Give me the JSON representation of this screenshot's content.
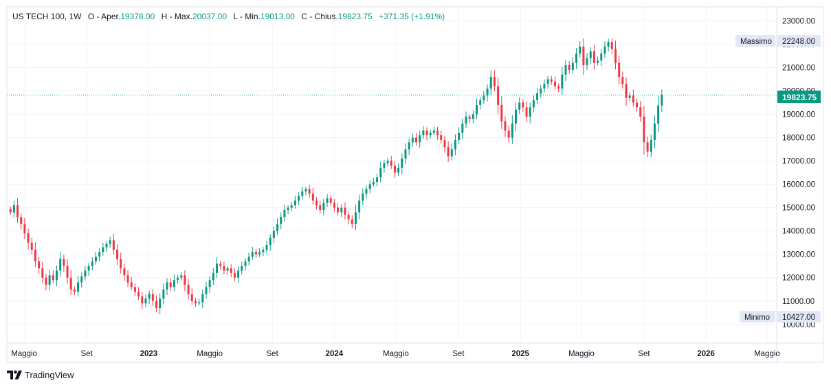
{
  "legend": {
    "symbol": "US TECH 100, 1W",
    "open_label": "O - Aper.",
    "open": "19378.00",
    "high_label": "H - Max.",
    "high": "20037.00",
    "low_label": "L - Min.",
    "low": "19013.00",
    "close_label": "C - Chius.",
    "close": "19823.75",
    "change": "+371.35 (+1.91%)"
  },
  "colors": {
    "up": "#089981",
    "down": "#f23645",
    "grid": "#f0f3fa",
    "badge_bg": "#e3e8f5"
  },
  "price_badges": {
    "current": "19823.75",
    "max_label": "Massimo",
    "max_value": "22248.00",
    "min_label": "Minimo",
    "min_value": "10427.00"
  },
  "brand": {
    "name": "TradingView",
    "icon": "tradingview-logo-icon"
  },
  "chart_data": {
    "type": "candlestick",
    "title": "US TECH 100, 1W",
    "y_ticks": [
      "23000.00",
      "22000.00",
      "21000.00",
      "20000.00",
      "19000.00",
      "18000.00",
      "17000.00",
      "16000.00",
      "15000.00",
      "14000.00",
      "13000.00",
      "12000.00",
      "11000.00",
      "10000.00"
    ],
    "ylim": [
      9200,
      23600
    ],
    "x_ticks": [
      {
        "label": "Maggio",
        "date": "2022-05-01",
        "bold": false
      },
      {
        "label": "Set",
        "date": "2022-09-01",
        "bold": false
      },
      {
        "label": "2023",
        "date": "2023-01-01",
        "bold": true
      },
      {
        "label": "Maggio",
        "date": "2023-05-01",
        "bold": false
      },
      {
        "label": "Set",
        "date": "2023-09-01",
        "bold": false
      },
      {
        "label": "2024",
        "date": "2024-01-01",
        "bold": true
      },
      {
        "label": "Maggio",
        "date": "2024-05-01",
        "bold": false
      },
      {
        "label": "Set",
        "date": "2024-09-01",
        "bold": false
      },
      {
        "label": "2025",
        "date": "2025-01-01",
        "bold": true
      },
      {
        "label": "Maggio",
        "date": "2025-05-01",
        "bold": false
      },
      {
        "label": "Set",
        "date": "2025-09-01",
        "bold": false
      },
      {
        "label": "2026",
        "date": "2026-01-01",
        "bold": true
      },
      {
        "label": "Maggio",
        "date": "2026-05-01",
        "bold": false
      }
    ],
    "x_range": [
      "2022-03-28",
      "2026-05-20"
    ],
    "last_close": 19823.75,
    "max": 22248.0,
    "min": 10427.0,
    "grid": true,
    "series": [
      {
        "period": "weekly",
        "closes": [
          14800,
          15100,
          14600,
          14300,
          13900,
          13500,
          13200,
          12700,
          12400,
          12000,
          11700,
          12100,
          11900,
          12300,
          12800,
          12500,
          12000,
          11500,
          11400,
          11800,
          12050,
          12300,
          12500,
          12700,
          12900,
          13100,
          13300,
          13450,
          13600,
          13200,
          12800,
          12400,
          12100,
          11800,
          11600,
          11400,
          11200,
          10900,
          11100,
          11300,
          11000,
          10700,
          11100,
          11500,
          11800,
          11600,
          11900,
          12000,
          12100,
          11700,
          11300,
          11000,
          10900,
          10950,
          11300,
          11600,
          11900,
          12200,
          12600,
          12500,
          12300,
          12400,
          12200,
          12000,
          12300,
          12500,
          12700,
          12900,
          13100,
          13000,
          13100,
          13200,
          13400,
          13700,
          14000,
          14300,
          14600,
          14900,
          15000,
          15100,
          15300,
          15500,
          15700,
          15800,
          15600,
          15300,
          15100,
          14900,
          15200,
          15400,
          15200,
          15000,
          14800,
          15000,
          14700,
          14500,
          14300,
          14800,
          15300,
          15600,
          15800,
          16000,
          16100,
          16300,
          16700,
          16900,
          17000,
          16800,
          16500,
          16700,
          17100,
          17500,
          17800,
          18000,
          17800,
          18100,
          18300,
          18100,
          18200,
          18300,
          18100,
          17900,
          17600,
          17200,
          17500,
          17900,
          18200,
          18600,
          18900,
          18800,
          19000,
          19400,
          19600,
          19800,
          20100,
          20600,
          20200,
          19400,
          18700,
          18300,
          18000,
          18600,
          19200,
          19500,
          19300,
          18900,
          19300,
          19600,
          19900,
          20100,
          20300,
          20500,
          20400,
          20200,
          20100,
          20700,
          21100,
          20900,
          21200,
          21600,
          21900,
          21100,
          21400,
          21700,
          21200,
          21300,
          21600,
          21900,
          22100,
          21800,
          21200,
          20600,
          20300,
          19700,
          19800,
          19500,
          19300,
          18900,
          17800,
          17400,
          17900,
          18600,
          19380,
          19824
        ]
      }
    ]
  }
}
